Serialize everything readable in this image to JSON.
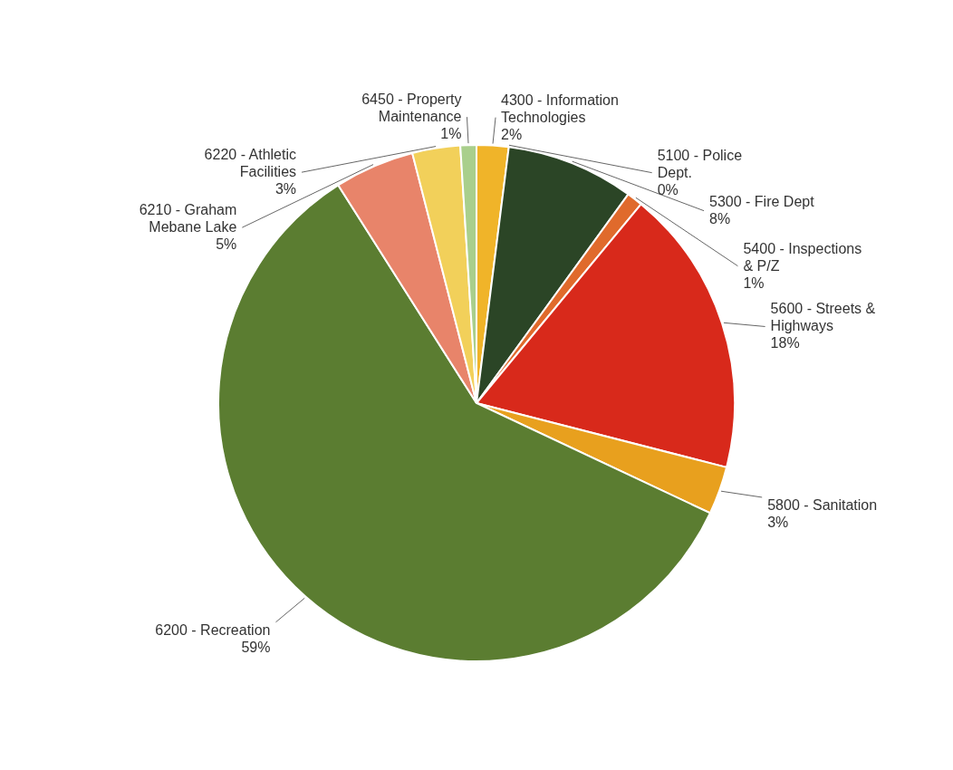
{
  "chart_data": {
    "type": "pie",
    "categories": [
      "4300 - Information Technologies",
      "5100 - Police Dept.",
      "5300 - Fire Dept",
      "5400 - Inspections & P/Z",
      "5600 - Streets & Highways",
      "5800 - Sanitation",
      "6200 - Recreation",
      "6210 - Graham Mebane Lake",
      "6220 - Athletic Facilities",
      "6450 - Property Maintenance"
    ],
    "values": [
      2,
      0,
      8,
      1,
      18,
      3,
      59,
      5,
      3,
      1
    ],
    "value_labels": [
      "2%",
      "0%",
      "8%",
      "1%",
      "18%",
      "3%",
      "59%",
      "5%",
      "3%",
      "1%"
    ],
    "colors": [
      "#f0b429",
      "#e0782a",
      "#2b4526",
      "#e06a2c",
      "#d8291b",
      "#e8a01e",
      "#5b7d31",
      "#e8846a",
      "#f2d05a",
      "#a9cf8c"
    ]
  }
}
